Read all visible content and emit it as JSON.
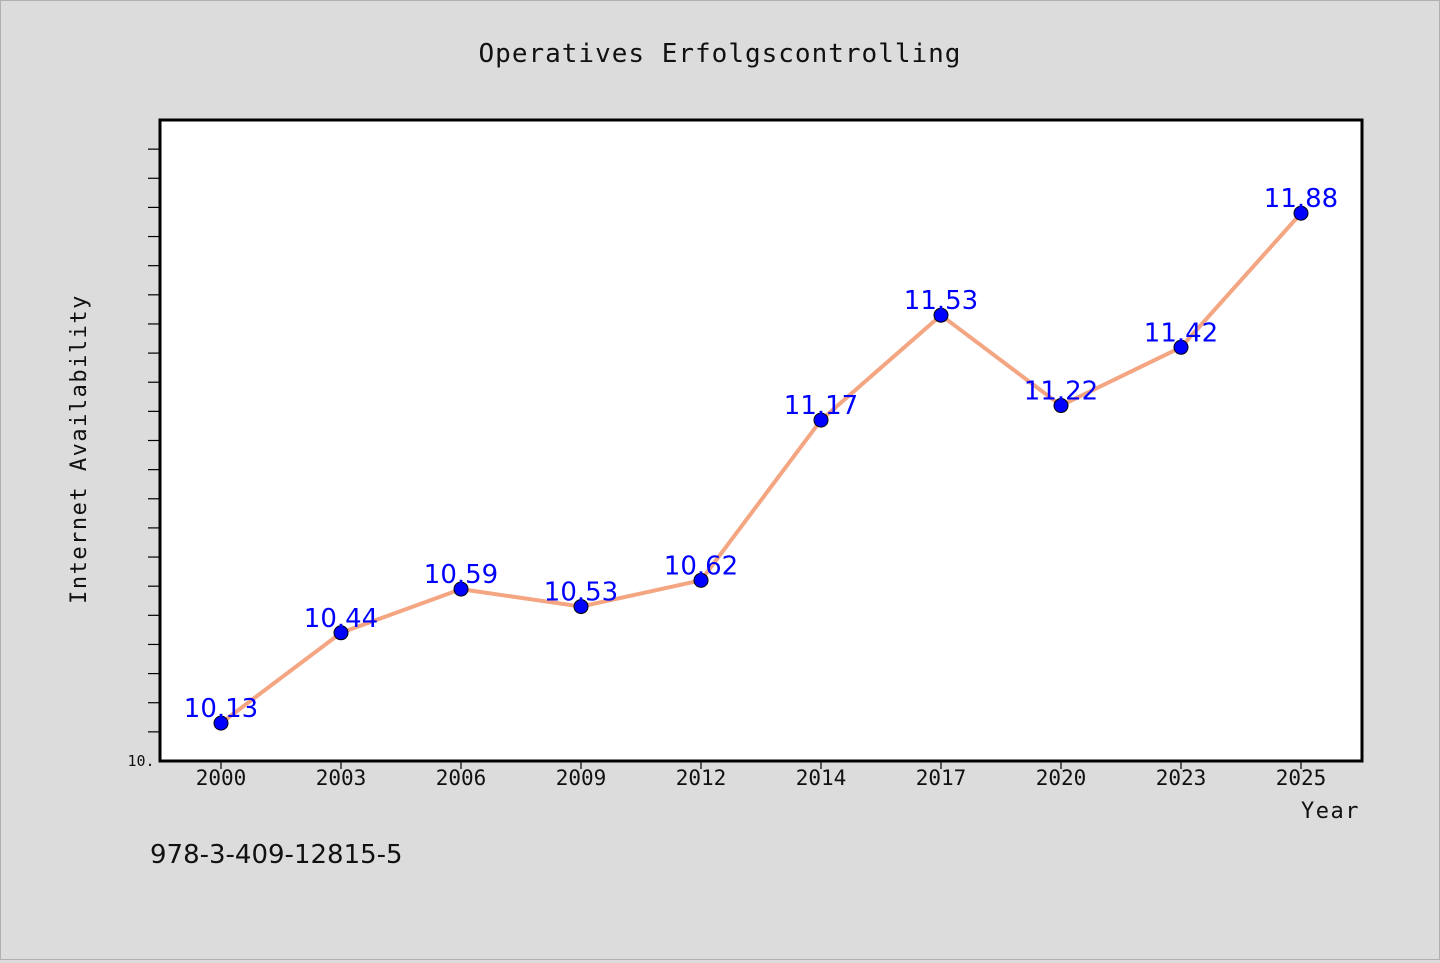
{
  "chart_data": {
    "type": "line",
    "title": "Operatives Erfolgscontrolling",
    "xlabel": "Year",
    "ylabel": "Internet Availability",
    "categories": [
      "2000",
      "2003",
      "2006",
      "2009",
      "2012",
      "2014",
      "2017",
      "2020",
      "2023",
      "2025"
    ],
    "series": [
      {
        "values": [
          10.13,
          10.44,
          10.59,
          10.53,
          10.62,
          11.17,
          11.53,
          11.22,
          11.42,
          11.88
        ],
        "line_color": "#f4a582",
        "marker_color": "#0000ff"
      }
    ],
    "data_labels": [
      "10.13",
      "10.44",
      "10.59",
      "10.53",
      "10.62",
      "11.17",
      "11.53",
      "11.22",
      "11.42",
      "11.88"
    ],
    "ylim": [
      10.0,
      12.2
    ],
    "y_tick_labels": [
      "10."
    ],
    "grid": false,
    "legend": "none"
  },
  "footer_text": "978-3-409-12815-5"
}
